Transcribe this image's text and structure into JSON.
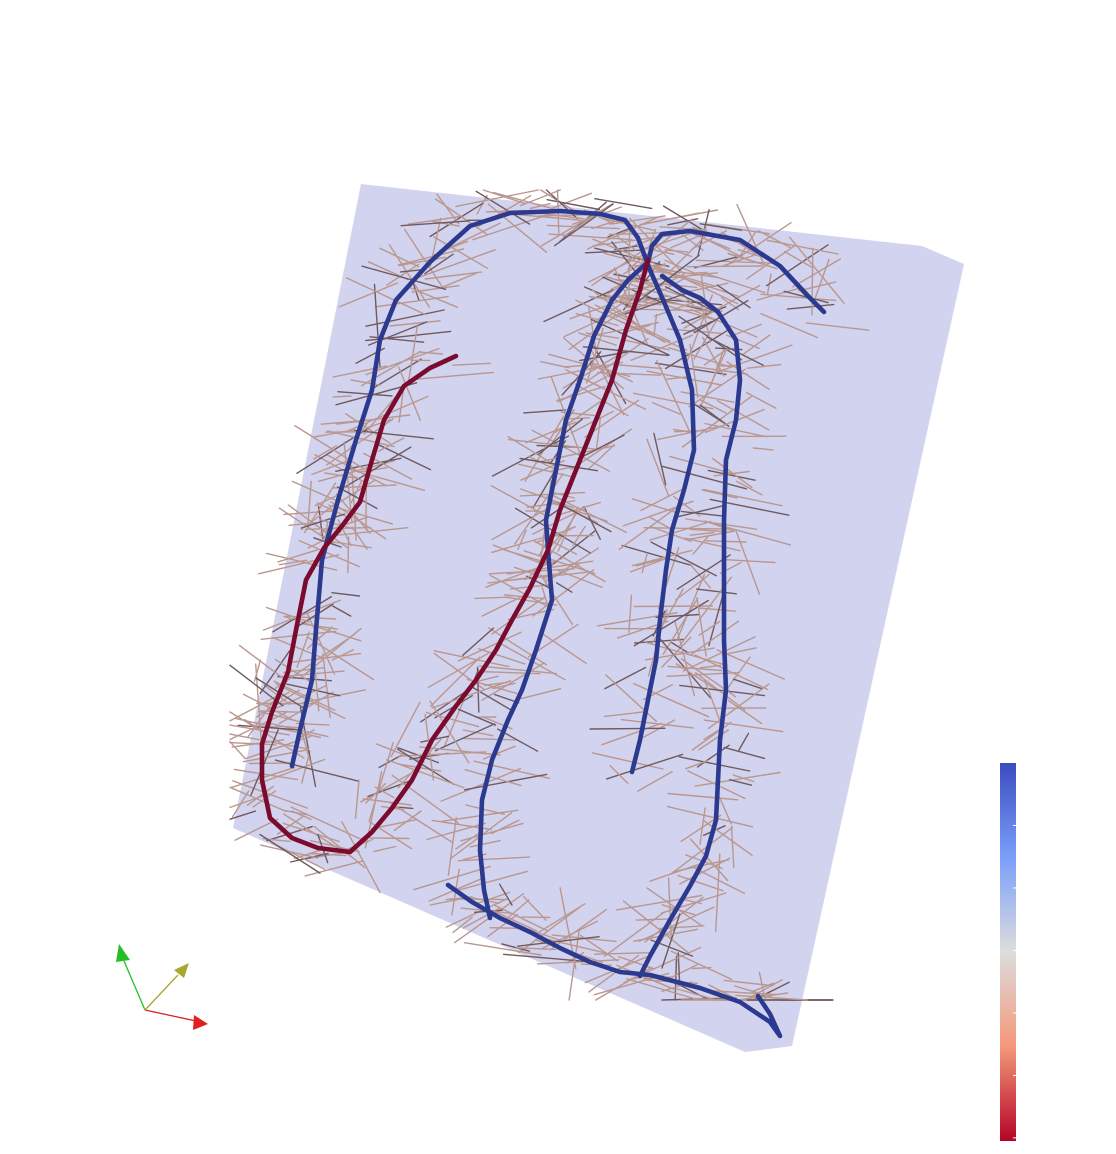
{
  "scene": {
    "background": "#ffffff",
    "plane_color": "#d2d3ee"
  },
  "colors": {
    "fiber_blue": "#2b3a8f",
    "fiber_red": "#7a0a2e",
    "hair_light": "#b9978f",
    "hair_dark": "#6f5a60"
  },
  "colorbar": {
    "colormap": "coolwarm",
    "top_color": "#3b4cc0",
    "mid_color": "#dddddd",
    "bottom_color": "#b40426",
    "tick_count": 6
  },
  "orientation_axes": {
    "x_color": "#e01f1f",
    "y_color": "#22c022",
    "z_color": "#a8a830"
  }
}
